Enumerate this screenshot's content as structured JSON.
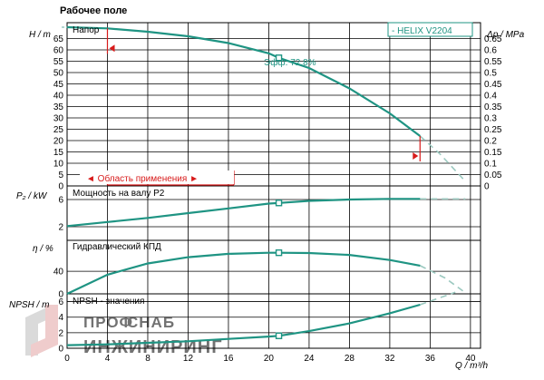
{
  "page_title": "Рабочее поле",
  "colors": {
    "curve": "#1f9483",
    "grid": "#000000",
    "marker": "#d81b1b",
    "watermark": "#c8c8c8",
    "watermark_accent": "#e3a3a3"
  },
  "watermark": {
    "line1": "ПРОФ",
    "line2": "СНАБ",
    "line3": "ИНЖИНИРИНГ",
    "logo": "ps-logo"
  },
  "x_axis": {
    "label": "Q / m³/h",
    "ticks": [
      "0",
      "4",
      "8",
      "12",
      "16",
      "20",
      "24",
      "28",
      "32",
      "36",
      "40"
    ],
    "range": [
      0,
      41
    ]
  },
  "chart_data": [
    {
      "type": "line",
      "panel": "head",
      "title": "Напор",
      "legend": "- HELIX V2204",
      "ylabel": "H / m",
      "ylabel_right": "Δp / MPa",
      "ylim": [
        0,
        72
      ],
      "yticks": [
        "0",
        "5",
        "10",
        "15",
        "20",
        "25",
        "30",
        "35",
        "40",
        "45",
        "50",
        "55",
        "60",
        "65"
      ],
      "yticks_right": [
        "0",
        "0.05",
        "0.1",
        "0.15",
        "0.2",
        "0.25",
        "0.3",
        "0.35",
        "0.4",
        "0.45",
        "0.5",
        "0.55",
        "0.6",
        "0.65"
      ],
      "annotation": "Эфф.  72.8%",
      "range_label": "◄ Область применения ►",
      "x": [
        0,
        4,
        8,
        12,
        16,
        20,
        21,
        24,
        28,
        32,
        35
      ],
      "y": [
        70,
        69.5,
        68,
        66,
        63,
        58.5,
        56.5,
        52,
        43,
        32,
        22
      ],
      "x_ext": [
        35,
        37,
        39.5
      ],
      "y_ext": [
        22,
        14,
        2
      ],
      "duty_point": {
        "x": 21,
        "y": 56.5
      },
      "range_min": 4,
      "range_max": 35
    },
    {
      "type": "line",
      "panel": "power",
      "title": "Мощность на валу P2",
      "ylabel": "P₂ / kW",
      "ylim": [
        0,
        8
      ],
      "yticks": [
        "2",
        "6"
      ],
      "x": [
        0,
        4,
        8,
        12,
        16,
        20,
        21,
        24,
        28,
        32,
        35
      ],
      "y": [
        2.1,
        2.7,
        3.3,
        4.0,
        4.7,
        5.4,
        5.5,
        5.8,
        6.0,
        6.1,
        6.1
      ],
      "x_ext": [
        35,
        39.5
      ],
      "y_ext": [
        6.1,
        6.1
      ],
      "duty_point": {
        "x": 21,
        "y": 5.5
      }
    },
    {
      "type": "line",
      "panel": "efficiency",
      "title": "Гидравлический КПД",
      "ylabel": "η / %",
      "ylim": [
        0,
        95
      ],
      "yticks": [
        "0",
        "40"
      ],
      "x": [
        0,
        4,
        8,
        12,
        16,
        20,
        21,
        24,
        28,
        32,
        35
      ],
      "y": [
        0,
        34,
        54,
        65,
        71,
        73,
        73,
        72.5,
        69,
        60,
        50
      ],
      "x_ext": [
        35,
        37.5,
        39.5
      ],
      "y_ext": [
        50,
        28,
        2
      ],
      "duty_point": {
        "x": 21,
        "y": 73
      }
    },
    {
      "type": "line",
      "panel": "npsh",
      "title": "NPSH - значения",
      "ylabel": "NPSH / m",
      "ylim": [
        0,
        7
      ],
      "yticks": [
        "0",
        "2",
        "4",
        "6"
      ],
      "x": [
        0,
        4,
        8,
        12,
        16,
        20,
        21,
        24,
        28,
        32,
        35
      ],
      "y": [
        0.4,
        0.5,
        0.7,
        0.9,
        1.2,
        1.5,
        1.6,
        2.2,
        3.2,
        4.5,
        5.6
      ],
      "x_ext": [
        35,
        38.5
      ],
      "y_ext": [
        5.6,
        7.2
      ],
      "duty_point": {
        "x": 21,
        "y": 1.6
      }
    }
  ]
}
